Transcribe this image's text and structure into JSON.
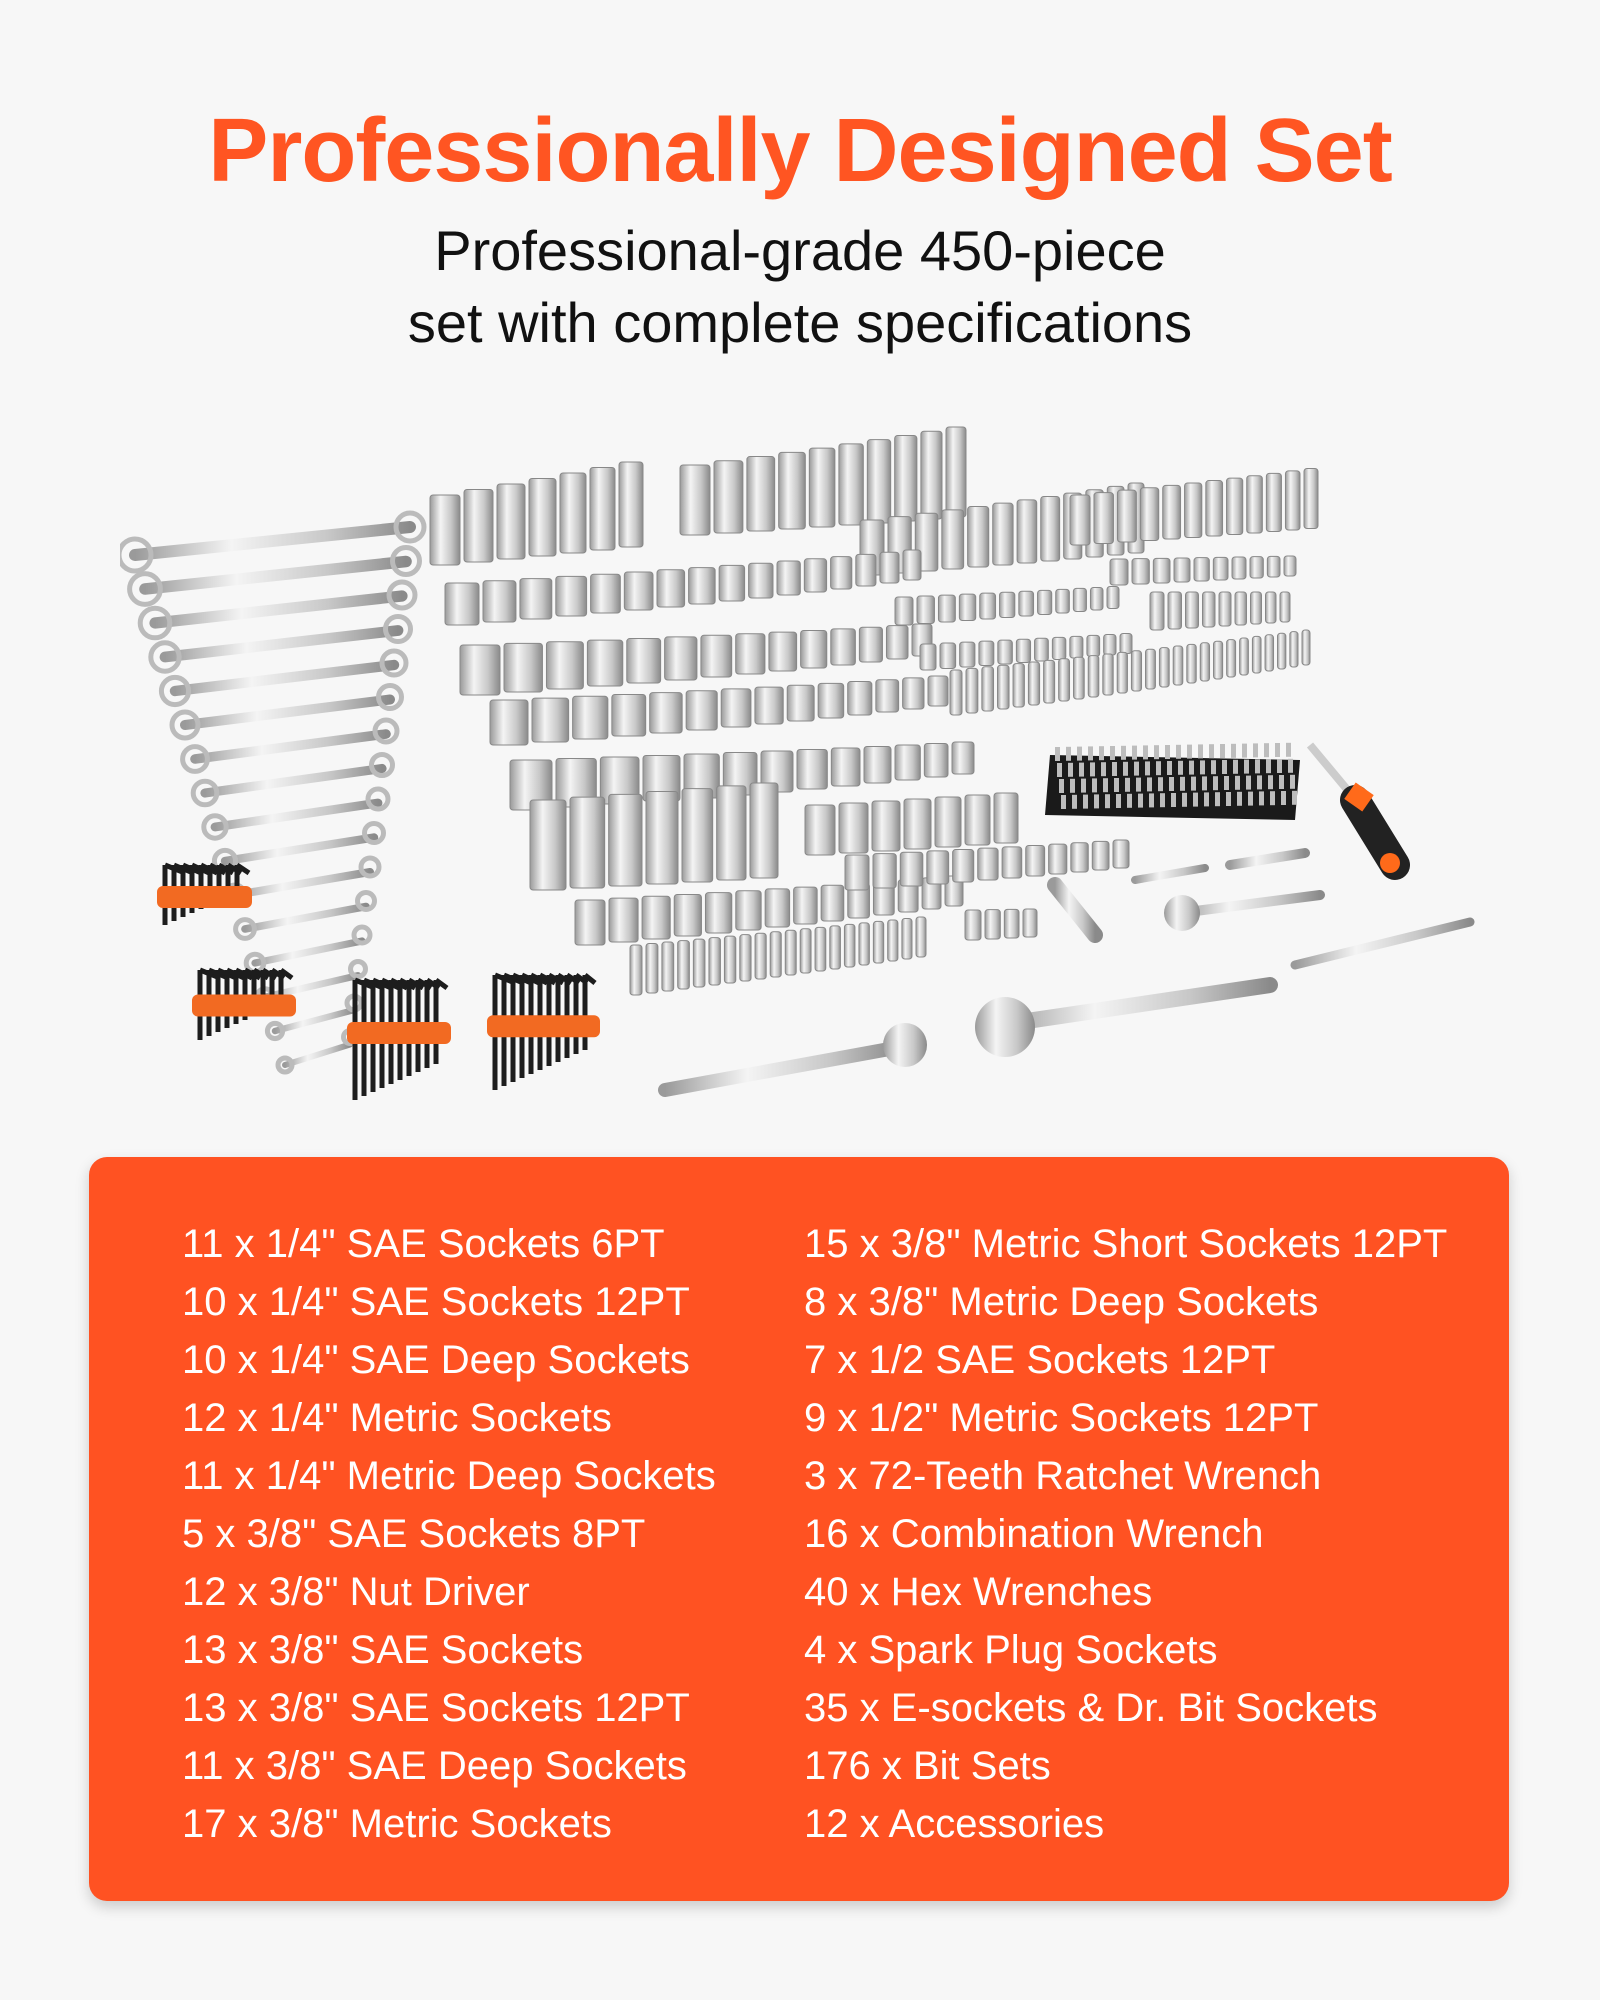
{
  "header": {
    "title": "Professionally Designed Set",
    "subtitle_line1": "Professional-grade 450-piece",
    "subtitle_line2": "set with complete specifications"
  },
  "colors": {
    "accent": "#ff5522",
    "panel": "#ff5222",
    "background": "#f7f7f7",
    "holder": "#f26a22"
  },
  "image": {
    "content": "tool-set-photo"
  },
  "specs": {
    "left": [
      "11 x 1/4\" SAE Sockets  6PT",
      "10 x 1/4\" SAE Sockets 12PT",
      "10 x 1/4\" SAE Deep Sockets",
      "12 x 1/4\" Metric Sockets",
      "11 x 1/4\" Metric Deep Sockets",
      "5 x 3/8\" SAE Sockets 8PT",
      "12 x 3/8\" Nut Driver",
      "13 x 3/8\" SAE Sockets",
      "13 x 3/8\" SAE Sockets 12PT",
      "11 x 3/8\" SAE Deep Sockets",
      "17 x 3/8\" Metric Sockets"
    ],
    "right": [
      "15 x 3/8\" Metric Short Sockets 12PT",
      "8 x 3/8\" Metric Deep Sockets",
      "7 x 1/2 SAE Sockets 12PT",
      "9 x 1/2\" Metric Sockets 12PT",
      "3 x  72-Teeth Ratchet Wrench",
      "16 x  Combination Wrench",
      "40 x Hex Wrenches",
      "4 x Spark Plug Sockets",
      "35 x E-sockets & Dr. Bit Sockets",
      "176 x  Bit Sets",
      "12 x Accessories"
    ]
  }
}
